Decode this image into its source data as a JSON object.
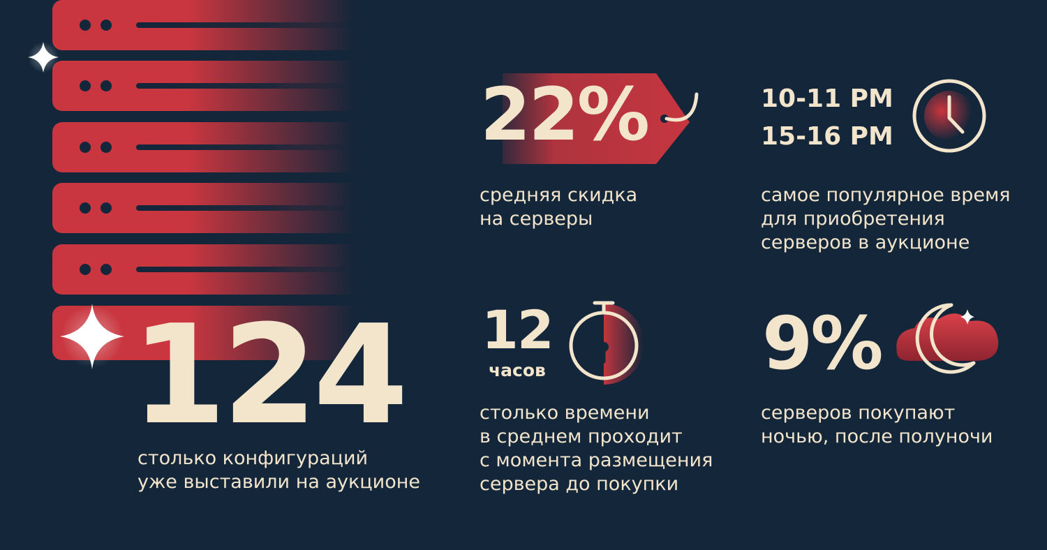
{
  "stats": {
    "configs": {
      "value": "124",
      "caption": [
        "столько конфигураций",
        "уже выставили на аукционе"
      ]
    },
    "discount": {
      "value": "22%",
      "caption": [
        "средняя скидка",
        "на серверы"
      ]
    },
    "peak_time": {
      "values": [
        "10-11 PM",
        "15-16 PM"
      ],
      "caption": [
        "самое популярное время",
        "для приобретения",
        "серверов в аукционе"
      ]
    },
    "sale_time": {
      "value": "12",
      "unit": "часов",
      "caption": [
        "столько времени",
        "в среднем проходит",
        "с момента размещения",
        "сервера до покупки"
      ]
    },
    "night": {
      "value": "9%",
      "caption": [
        "серверов покупают",
        "ночью, после полуночи"
      ]
    }
  },
  "colors": {
    "background": "#13263a",
    "accent": "#c9363f",
    "text": "#f3e5cc"
  },
  "icons": [
    "server-rack-icon",
    "sparkle-icon",
    "price-tag-icon",
    "clock-icon",
    "stopwatch-icon",
    "moon-cloud-icon"
  ]
}
